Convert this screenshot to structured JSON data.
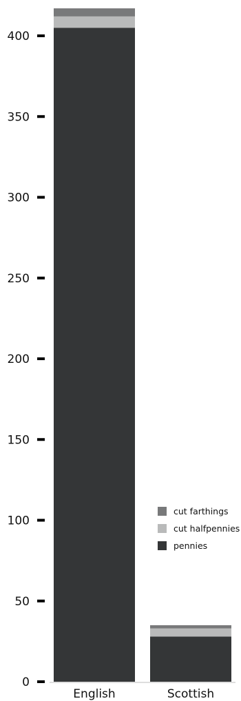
{
  "chart_data": {
    "type": "bar",
    "stacked": true,
    "categories": [
      "English",
      "Scottish"
    ],
    "series": [
      {
        "name": "pennies",
        "values": [
          405,
          28
        ],
        "color": "#343637"
      },
      {
        "name": "cut halfpennies",
        "values": [
          7,
          5
        ],
        "color": "#b9baba"
      },
      {
        "name": "cut farthings",
        "values": [
          5,
          2
        ],
        "color": "#78797a"
      }
    ],
    "ylim": [
      0,
      400
    ],
    "yticks": [
      0,
      50,
      100,
      150,
      200,
      250,
      300,
      350,
      400
    ],
    "grid": false,
    "legend_placement": "right",
    "legend_order": [
      "cut farthings",
      "cut halfpennies",
      "pennies"
    ],
    "xlabel": "",
    "ylabel": "",
    "title": ""
  }
}
